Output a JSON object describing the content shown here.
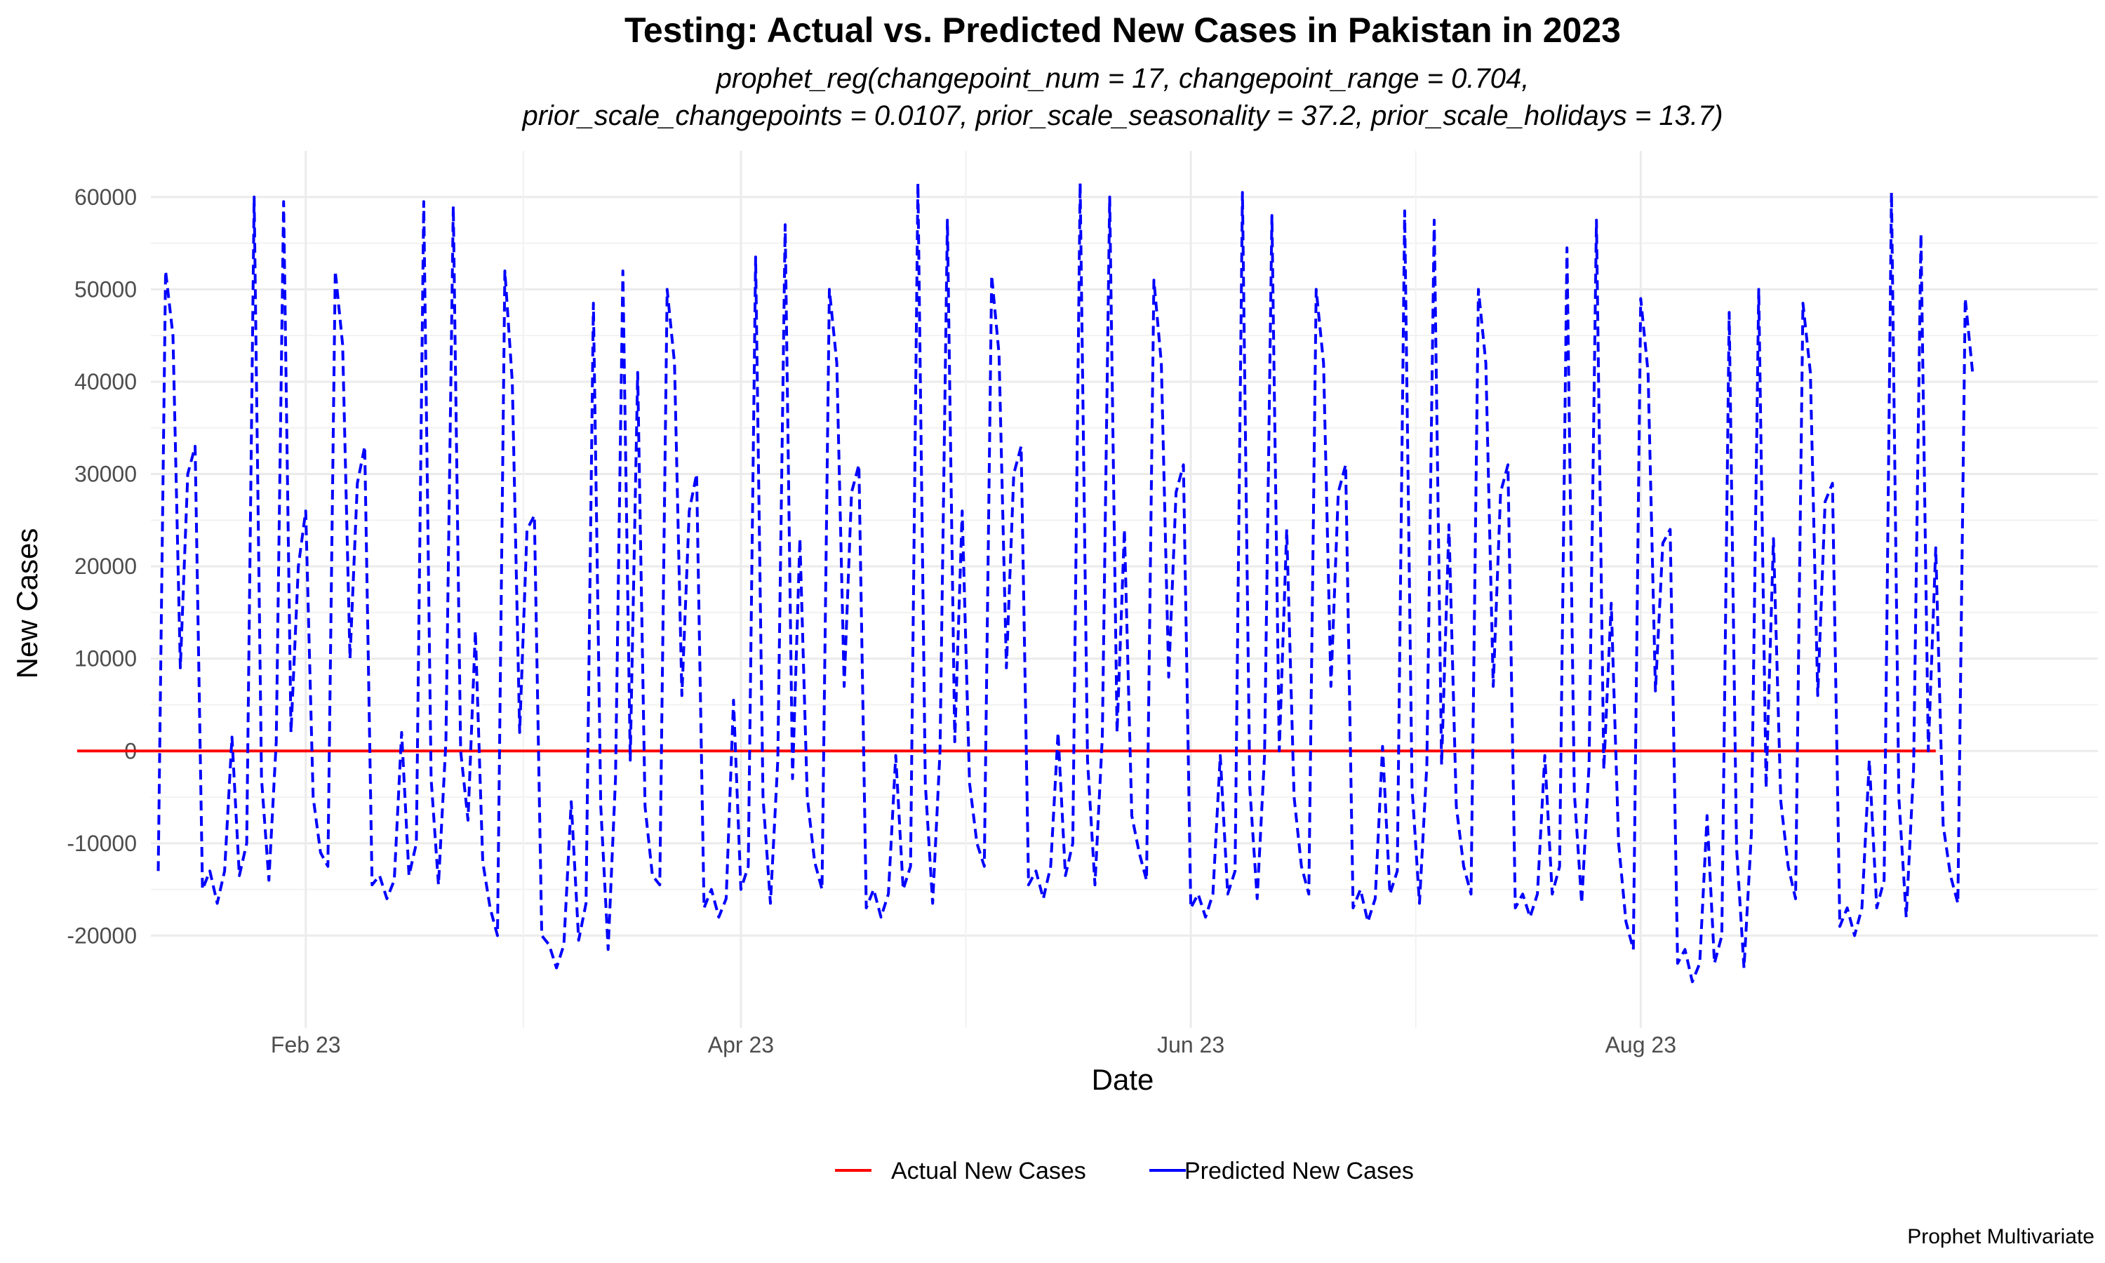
{
  "chart_data": {
    "type": "line",
    "title": "Testing: Actual vs. Predicted New Cases in Pakistan in 2023",
    "subtitle_lines": [
      "prophet_reg(changepoint_num = 17, changepoint_range = 0.704,",
      "prior_scale_changepoints = 0.0107, prior_scale_seasonality = 37.2, prior_scale_holidays = 13.7)"
    ],
    "xlabel": "Date",
    "ylabel": "New Cases",
    "caption": "Prophet Multivariate",
    "x_range": [
      "2023-01-11",
      "2023-10-02"
    ],
    "ylim": [
      -30000,
      65000
    ],
    "y_ticks": [
      -20000,
      -10000,
      0,
      10000,
      20000,
      30000,
      40000,
      50000,
      60000
    ],
    "y_tick_labels": [
      "-20000",
      "-10000",
      "0",
      "10000",
      "20000",
      "30000",
      "40000",
      "50000",
      "60000"
    ],
    "x_ticks": [
      "2023-02-01",
      "2023-04-01",
      "2023-06-01",
      "2023-08-01"
    ],
    "x_tick_labels": [
      "Feb 23",
      "Apr 23",
      "Jun 23",
      "Aug 23"
    ],
    "grid": true,
    "legend_position": "bottom",
    "series": [
      {
        "name": "Actual New Cases",
        "color": "#ff0000",
        "style": "solid",
        "start": "2023-01-01",
        "values": [
          0,
          0,
          0,
          0,
          0,
          0,
          0,
          0,
          0,
          0,
          0,
          0,
          0,
          0,
          0,
          0,
          0,
          0,
          0,
          0,
          0,
          0,
          0,
          0,
          0,
          0,
          0,
          0,
          0,
          0,
          0,
          0,
          0,
          0,
          0,
          0,
          0,
          0,
          0,
          0,
          0,
          0,
          0,
          0,
          0,
          0,
          0,
          0,
          0,
          0,
          0,
          0,
          0,
          0,
          0,
          0,
          0,
          0,
          0,
          0,
          0,
          0,
          0,
          0,
          0,
          0,
          0,
          0,
          0,
          0,
          0,
          0,
          0,
          0,
          0,
          0,
          0,
          0,
          0,
          0,
          0,
          0,
          0,
          0,
          0,
          0,
          0,
          0,
          0,
          0,
          0,
          0,
          0,
          0,
          0,
          0,
          0,
          0,
          0,
          0,
          0,
          0,
          0,
          0,
          0,
          0,
          0,
          0,
          0,
          0,
          0,
          0,
          0,
          0,
          0,
          0,
          0,
          0,
          0,
          0,
          0,
          0,
          0,
          0,
          0,
          0,
          0,
          0,
          0,
          0,
          0,
          0,
          0,
          0,
          0,
          0,
          0,
          0,
          0,
          0,
          0,
          0,
          0,
          0,
          0,
          0,
          0,
          0,
          0,
          0,
          0,
          0,
          0,
          0,
          0,
          0,
          0,
          0,
          0,
          0,
          0,
          0,
          0,
          0,
          0,
          0,
          0,
          0,
          0,
          0,
          0,
          0,
          0,
          0,
          0,
          0,
          0,
          0,
          0,
          0,
          0,
          0,
          0,
          0,
          0,
          0,
          0,
          0,
          0,
          0,
          0,
          0,
          0,
          0,
          0,
          0,
          0,
          0,
          0,
          0,
          0,
          0,
          0,
          0,
          0,
          0,
          0,
          0,
          0,
          0,
          0,
          0,
          0,
          0,
          0,
          0,
          0,
          0,
          0,
          0,
          0,
          0,
          0,
          0,
          0,
          0,
          0,
          0,
          0,
          0,
          0,
          0,
          0,
          0,
          0,
          0,
          0,
          0,
          0,
          0,
          0,
          0,
          0,
          0,
          0,
          0,
          0,
          0,
          0,
          0,
          0,
          0,
          0
        ]
      },
      {
        "name": "Predicted New Cases",
        "color": "#0000ff",
        "style": "dashed",
        "start": "2023-01-12",
        "values": [
          -13000,
          52000,
          45000,
          9000,
          30000,
          33000,
          -15000,
          -13000,
          -16500,
          -13000,
          1500,
          -13500,
          -10000,
          60000,
          -3000,
          -14000,
          1000,
          59500,
          2000,
          20000,
          26000,
          -5000,
          -11000,
          -12500,
          52000,
          44000,
          10000,
          29000,
          33000,
          -14500,
          -13500,
          -16000,
          -14000,
          2000,
          -13500,
          -10000,
          59500,
          -3000,
          -14500,
          1000,
          59000,
          0,
          -7500,
          13000,
          -12000,
          -17000,
          -20000,
          52000,
          40000,
          2000,
          24000,
          25500,
          -20000,
          -21000,
          -23500,
          -21000,
          -5500,
          -20500,
          -16500,
          48500,
          -6000,
          -21500,
          -3000,
          52000,
          -1000,
          41000,
          -6000,
          -13500,
          -14500,
          50000,
          42000,
          6000,
          26000,
          30000,
          -17000,
          -15000,
          -18000,
          -16000,
          5500,
          -15000,
          -12500,
          53500,
          -5000,
          -16500,
          -1000,
          57000,
          -3000,
          23000,
          -5000,
          -12000,
          -15000,
          50000,
          42000,
          7000,
          28000,
          31000,
          -17000,
          -15000,
          -18000,
          -15500,
          -500,
          -15000,
          -12500,
          61500,
          -3500,
          -16500,
          0,
          57500,
          1000,
          26000,
          -3500,
          -10000,
          -12500,
          51500,
          43000,
          9000,
          30000,
          33000,
          -14500,
          -13000,
          -16000,
          -12500,
          2000,
          -13500,
          -10000,
          61500,
          -1000,
          -14500,
          1500,
          60000,
          2000,
          24000,
          -7000,
          -11000,
          -14000,
          51000,
          42000,
          8000,
          28000,
          31000,
          -17000,
          -15500,
          -18000,
          -15500,
          -500,
          -15500,
          -13000,
          60500,
          -4000,
          -16000,
          -500,
          58000,
          0,
          24000,
          -5000,
          -12500,
          -15500,
          50000,
          42000,
          7000,
          28000,
          31000,
          -17000,
          -15000,
          -18500,
          -16000,
          500,
          -15500,
          -13000,
          58500,
          -4000,
          -16500,
          -1500,
          57500,
          -1500,
          24500,
          -6000,
          -12500,
          -15500,
          50000,
          42000,
          7000,
          28000,
          31000,
          -17000,
          -15500,
          -18000,
          -15500,
          -500,
          -15500,
          -12500,
          54500,
          -4500,
          -16500,
          -1500,
          57500,
          -2000,
          16000,
          -10000,
          -18500,
          -21500,
          49000,
          41000,
          6500,
          22500,
          24000,
          -23000,
          -21500,
          -25000,
          -23000,
          -7000,
          -23000,
          -20000,
          47500,
          -10500,
          -23500,
          -9000,
          50000,
          -4000,
          23000,
          -5500,
          -12500,
          -16000,
          48500,
          41000,
          6000,
          27000,
          29000,
          -19000,
          -17000,
          -20000,
          -17000,
          -1000,
          -17000,
          -14000,
          60500,
          -5000,
          -18000,
          -2000,
          56000,
          0,
          22000,
          -8000,
          -13500,
          -16500,
          49000,
          41000
        ]
      }
    ]
  }
}
